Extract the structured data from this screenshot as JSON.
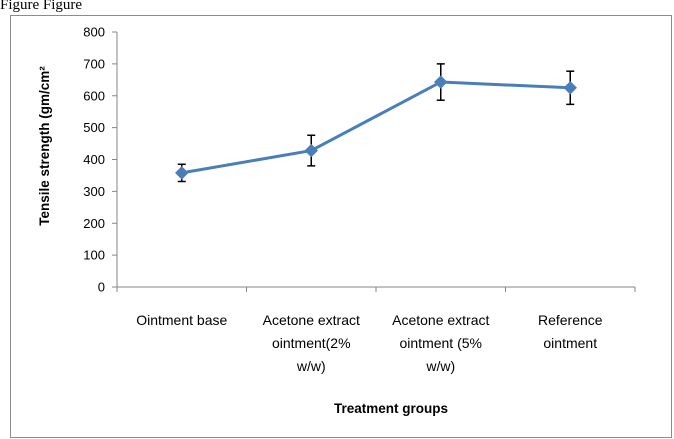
{
  "top_text": "Figure Figure",
  "chart_data": {
    "type": "line",
    "title": "",
    "xlabel": "Treatment groups",
    "ylabel": "Tensile strength (gm/cm²",
    "ylim": [
      0,
      800
    ],
    "ytick_step": 100,
    "yticks": [
      "0",
      "100",
      "200",
      "300",
      "400",
      "500",
      "600",
      "700",
      "800"
    ],
    "categories": [
      [
        "Ointment base"
      ],
      [
        "Acetone extract",
        "ointment(2%",
        "w/w)"
      ],
      [
        "Acetone extract",
        "ointment (5%",
        "w/w)"
      ],
      [
        "Reference",
        "ointment"
      ]
    ],
    "series": [
      {
        "values": [
          358,
          428,
          643,
          625
        ],
        "error": [
          27,
          48,
          57,
          52
        ],
        "color": "#4a7ebb"
      }
    ],
    "grid": false,
    "legend": "none"
  }
}
